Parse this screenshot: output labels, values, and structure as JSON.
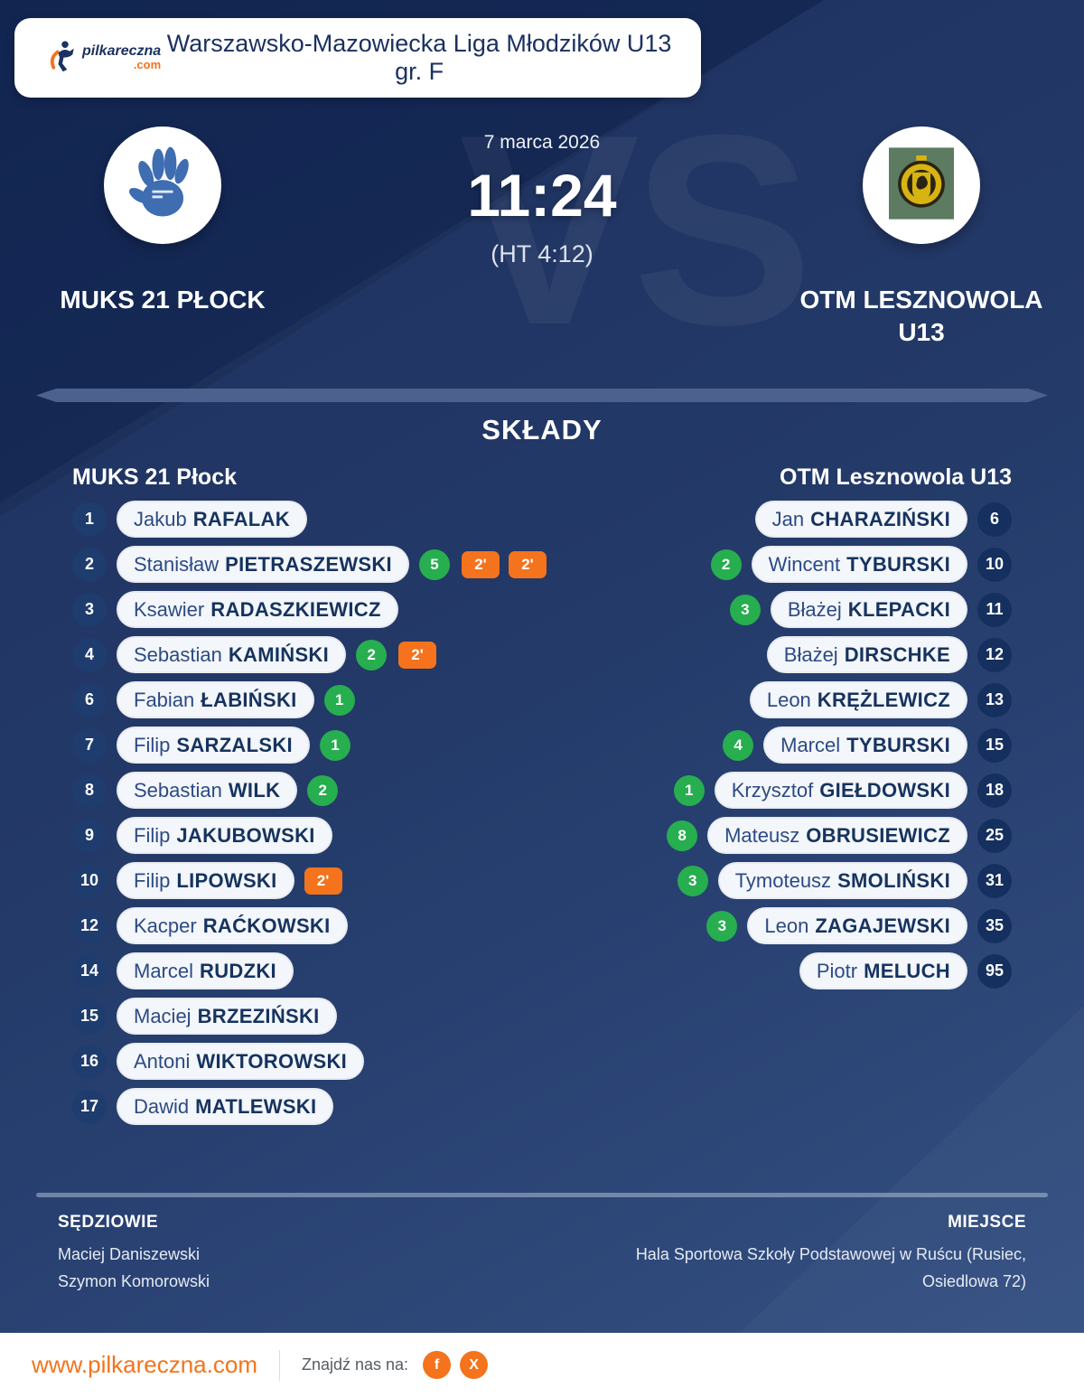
{
  "brand": {
    "name": "pilkareczna",
    "tld": ".com"
  },
  "header": {
    "title": "Warszawsko-Mazowiecka Liga Młodzików U13 gr. F"
  },
  "match": {
    "date": "7 marca 2026",
    "score": "11:24",
    "halftime": "(HT 4:12)",
    "vs_watermark": "VS",
    "home_name": "MUKS 21 PŁOCK",
    "away_name": "OTM LESZNOWOLA U13"
  },
  "lineups": {
    "section_title": "SKŁADY",
    "home_team_label": "MUKS 21 Płock",
    "away_team_label": "OTM Lesznowola U13",
    "home_players": [
      {
        "number": "1",
        "first": "Jakub",
        "last": "RAFALAK"
      },
      {
        "number": "2",
        "first": "Stanisław",
        "last": "PIETRASZEWSKI",
        "goals": "5",
        "suspensions": [
          "2'",
          "2'"
        ]
      },
      {
        "number": "3",
        "first": "Ksawier",
        "last": "RADASZKIEWICZ"
      },
      {
        "number": "4",
        "first": "Sebastian",
        "last": "KAMIŃSKI",
        "goals": "2",
        "suspensions": [
          "2'"
        ]
      },
      {
        "number": "6",
        "first": "Fabian",
        "last": "ŁABIŃSKI",
        "goals": "1"
      },
      {
        "number": "7",
        "first": "Filip",
        "last": "SARZALSKI",
        "goals": "1"
      },
      {
        "number": "8",
        "first": "Sebastian",
        "last": "WILK",
        "goals": "2"
      },
      {
        "number": "9",
        "first": "Filip",
        "last": "JAKUBOWSKI"
      },
      {
        "number": "10",
        "first": "Filip",
        "last": "LIPOWSKI",
        "suspensions": [
          "2'"
        ]
      },
      {
        "number": "12",
        "first": "Kacper",
        "last": "RAĆKOWSKI"
      },
      {
        "number": "14",
        "first": "Marcel",
        "last": "RUDZKI"
      },
      {
        "number": "15",
        "first": "Maciej",
        "last": "BRZEZIŃSKI"
      },
      {
        "number": "16",
        "first": "Antoni",
        "last": "WIKTOROWSKI"
      },
      {
        "number": "17",
        "first": "Dawid",
        "last": "MATLEWSKI"
      }
    ],
    "away_players": [
      {
        "number": "6",
        "first": "Jan",
        "last": "CHARAZIŃSKI"
      },
      {
        "number": "10",
        "first": "Wincent",
        "last": "TYBURSKI",
        "goals": "2"
      },
      {
        "number": "11",
        "first": "Błażej",
        "last": "KLEPACKI",
        "goals": "3"
      },
      {
        "number": "12",
        "first": "Błażej",
        "last": "DIRSCHKE"
      },
      {
        "number": "13",
        "first": "Leon",
        "last": "KRĘŻLEWICZ"
      },
      {
        "number": "15",
        "first": "Marcel",
        "last": "TYBURSKI",
        "goals": "4"
      },
      {
        "number": "18",
        "first": "Krzysztof",
        "last": "GIEŁDOWSKI",
        "goals": "1"
      },
      {
        "number": "25",
        "first": "Mateusz",
        "last": "OBRUSIEWICZ",
        "goals": "8"
      },
      {
        "number": "31",
        "first": "Tymoteusz",
        "last": "SMOLIŃSKI",
        "goals": "3"
      },
      {
        "number": "35",
        "first": "Leon",
        "last": "ZAGAJEWSKI",
        "goals": "3"
      },
      {
        "number": "95",
        "first": "Piotr",
        "last": "MELUCH"
      }
    ]
  },
  "info": {
    "referees_label": "SĘDZIOWIE",
    "referees": [
      "Maciej Daniszewski",
      "Szymon Komorowski"
    ],
    "venue_label": "MIEJSCE",
    "venue_lines": [
      "Hala Sportowa Szkoły Podstawowej w Ruścu (Rusiec,",
      "Osiedlowa 72)"
    ]
  },
  "footer": {
    "url": "www.pilkareczna.com",
    "find_us": "Znajdź nas na:",
    "social": [
      {
        "icon": "facebook",
        "label": "f"
      },
      {
        "icon": "x-twitter",
        "label": "X"
      }
    ]
  },
  "colors": {
    "accent_orange": "#f4731c",
    "goal_green": "#27ae4f",
    "navy_text": "#1b3160",
    "pill_bg": "#f3f6fa"
  }
}
